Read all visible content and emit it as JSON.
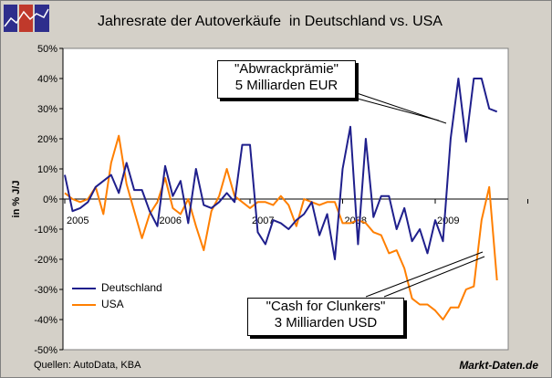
{
  "title": "Jahresrate der Autoverkäufe  in Deutschland vs. USA",
  "footer": {
    "source": "Quellen: AutoData, KBA",
    "brand": "Markt-Daten.de"
  },
  "colors": {
    "background": "#d4d0c8",
    "deutschland": "#1f1f8c",
    "usa": "#ff7f00"
  },
  "annotations": [
    {
      "line1": "\"Abwrackprämie\"",
      "line2": "5 Milliarden EUR"
    },
    {
      "line1": "\"Cash for Clunkers\"",
      "line2": "3 Milliarden USD"
    }
  ],
  "chart_data": {
    "type": "line",
    "ylabel": "in % J/J",
    "ylim": [
      -50,
      50
    ],
    "yticks": [
      "50%",
      "40%",
      "30%",
      "20%",
      "10%",
      "0%",
      "-10%",
      "-20%",
      "-30%",
      "-40%",
      "-50%"
    ],
    "xticks": [
      "2005",
      "2006",
      "2007",
      "2008",
      "2009"
    ],
    "x_start": "2005-01",
    "x_end": "2009-12",
    "grid": false,
    "legend_position": "bottom-left",
    "series": [
      {
        "name": "Deutschland",
        "values": [
          8,
          -4,
          -3,
          -1,
          4,
          6,
          8,
          2,
          12,
          3,
          3,
          -4,
          -9,
          11,
          1,
          6,
          -8,
          10,
          -2,
          -3,
          -1,
          2,
          -1,
          18,
          18,
          -11,
          -15,
          -7,
          -8,
          -10,
          -7,
          -5,
          -1,
          -12,
          -5,
          -20,
          10,
          24,
          -15,
          20,
          -6,
          1,
          1,
          -10,
          -3,
          -14,
          -10,
          -18,
          -7,
          -14,
          20,
          40,
          19,
          40,
          40,
          30,
          29
        ]
      },
      {
        "name": "USA",
        "values": [
          2,
          0,
          -1,
          0,
          4,
          -5,
          12,
          21,
          5,
          -4,
          -13,
          -5,
          -1,
          7,
          -3,
          -5,
          0,
          -9,
          -17,
          -4,
          1,
          10,
          1,
          -1,
          -3,
          -1,
          -1,
          -2,
          1,
          -2,
          -9,
          0,
          -1,
          -2,
          -1,
          -1,
          -8,
          -8,
          -7,
          -8,
          -11,
          -12,
          -18,
          -17,
          -23,
          -33,
          -35,
          -35,
          -37,
          -40,
          -36,
          -36,
          -30,
          -29,
          -7,
          4,
          -27
        ]
      }
    ]
  }
}
